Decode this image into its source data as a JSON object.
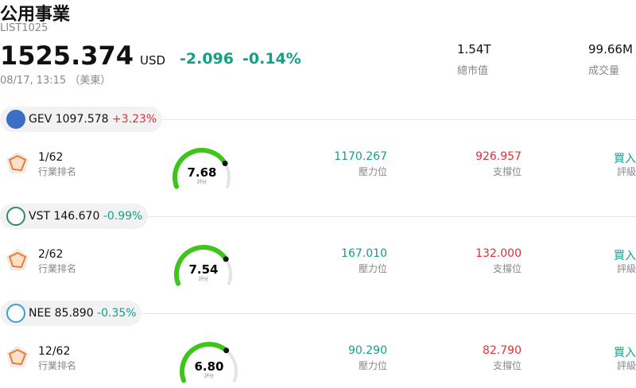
{
  "header": {
    "title": "公用事業",
    "code": "LIST1025",
    "price": "1525.374",
    "currency": "USD",
    "change": "-2.096",
    "change_pct": "-0.14%",
    "time": "08/17, 13:15 （美東）",
    "market_cap": "1.54T",
    "market_cap_label": "總市值",
    "volume": "99.66M",
    "volume_label": "成交量"
  },
  "stocks": [
    {
      "ticker": "GEV",
      "price": "1097.578",
      "change": "+3.23%",
      "rank": "1/62",
      "rank_label": "行業排名",
      "score": "7.68",
      "score_label": "評分",
      "resistance": "1170.267",
      "resistance_label": "壓力位",
      "support": "926.957",
      "support_label": "支撐位",
      "rating": "買入",
      "rating_label": "評級"
    },
    {
      "ticker": "VST",
      "price": "146.670",
      "change": "-0.99%",
      "rank": "2/62",
      "rank_label": "行業排名",
      "score": "7.54",
      "score_label": "評分",
      "resistance": "167.010",
      "resistance_label": "壓力位",
      "support": "132.000",
      "support_label": "支撐位",
      "rating": "買入",
      "rating_label": "評級"
    },
    {
      "ticker": "NEE",
      "price": "85.890",
      "change": "-0.35%",
      "rank": "12/62",
      "rank_label": "行業排名",
      "score": "6.80",
      "score_label": "評分",
      "resistance": "90.290",
      "resistance_label": "壓力位",
      "support": "82.790",
      "support_label": "支撐位",
      "rating": "買入",
      "rating_label": "評級"
    }
  ]
}
